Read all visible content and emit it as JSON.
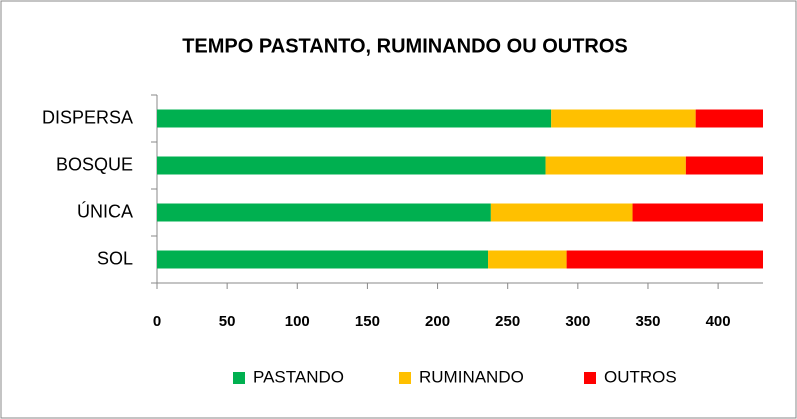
{
  "chart_data": {
    "type": "stacked_bar_horizontal",
    "title": "TEMPO  PASTANTO, RUMINANDO OU OUTROS",
    "categories": [
      "DISPERSA",
      "BOSQUE",
      "ÚNICA",
      "SOL"
    ],
    "series": [
      {
        "name": "PASTANDO",
        "color": "#00b050",
        "values": [
          281,
          277,
          238,
          236
        ]
      },
      {
        "name": "RUMINANDO",
        "color": "#ffc000",
        "values": [
          103,
          100,
          101,
          56
        ]
      },
      {
        "name": "OUTROS",
        "color": "#ff0000",
        "values": [
          48,
          55,
          93,
          140
        ]
      }
    ],
    "xlim": [
      0,
      432
    ],
    "xticks": [
      0,
      50,
      100,
      150,
      200,
      250,
      300,
      350,
      400
    ],
    "legend": "bottom",
    "grid": false
  }
}
